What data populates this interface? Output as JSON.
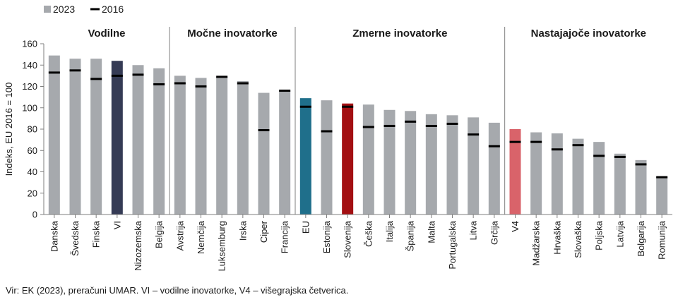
{
  "chart_data": {
    "type": "bar",
    "ylabel": "Indeks, EU 2016 = 100",
    "ylim": [
      0,
      160
    ],
    "yticks": [
      0,
      20,
      40,
      60,
      80,
      100,
      120,
      140,
      160
    ],
    "legend": [
      {
        "name": "2023",
        "marker": "bar"
      },
      {
        "name": "2016",
        "marker": "dash"
      }
    ],
    "groups": [
      {
        "label": "Vodilne",
        "start": 0,
        "end": 5
      },
      {
        "label": "Močne inovatorke",
        "start": 6,
        "end": 11
      },
      {
        "label": "Zmerne inovatorke",
        "start": 12,
        "end": 21
      },
      {
        "label": "Nastajajoče inovatorke",
        "start": 22,
        "end": 29
      }
    ],
    "categories": [
      "Danska",
      "Švedska",
      "Finska",
      "VI",
      "Nizozemska",
      "Belgija",
      "Avstrija",
      "Nemčija",
      "Luksemburg",
      "Irska",
      "Ciper",
      "Francija",
      "EU",
      "Estonija",
      "Slovenija",
      "Češka",
      "Italija",
      "Španija",
      "Malta",
      "Portugalska",
      "Litva",
      "Grčija",
      "V4",
      "Madžarska",
      "Hrvaška",
      "Slovaška",
      "Poljska",
      "Latvija",
      "Bolgarija",
      "Romunija"
    ],
    "series": [
      {
        "name": "2023",
        "values": [
          149,
          146,
          146,
          144,
          140,
          137,
          130,
          128,
          129,
          125,
          114,
          116,
          109,
          107,
          104,
          103,
          98,
          97,
          94,
          93,
          91,
          86,
          80,
          77,
          76,
          71,
          68,
          57,
          51,
          35
        ]
      },
      {
        "name": "2016",
        "values": [
          133,
          135,
          127,
          130,
          131,
          122,
          123,
          120,
          129,
          123,
          79,
          116,
          101,
          78,
          101,
          82,
          83,
          87,
          83,
          85,
          75,
          64,
          68,
          68,
          61,
          65,
          55,
          54,
          47,
          35
        ]
      }
    ],
    "colors": {
      "default": "#a6a9ad",
      "VI": "#353b55",
      "EU": "#1f6f8b",
      "Slovenija": "#a30f12",
      "V4": "#d9636a",
      "marker": "#000000",
      "axis": "#7f7f7f"
    }
  },
  "source": "Vir: EK (2023), preračuni UMAR. VI – vodilne inovatorke, V4 – višegrajska četverica."
}
